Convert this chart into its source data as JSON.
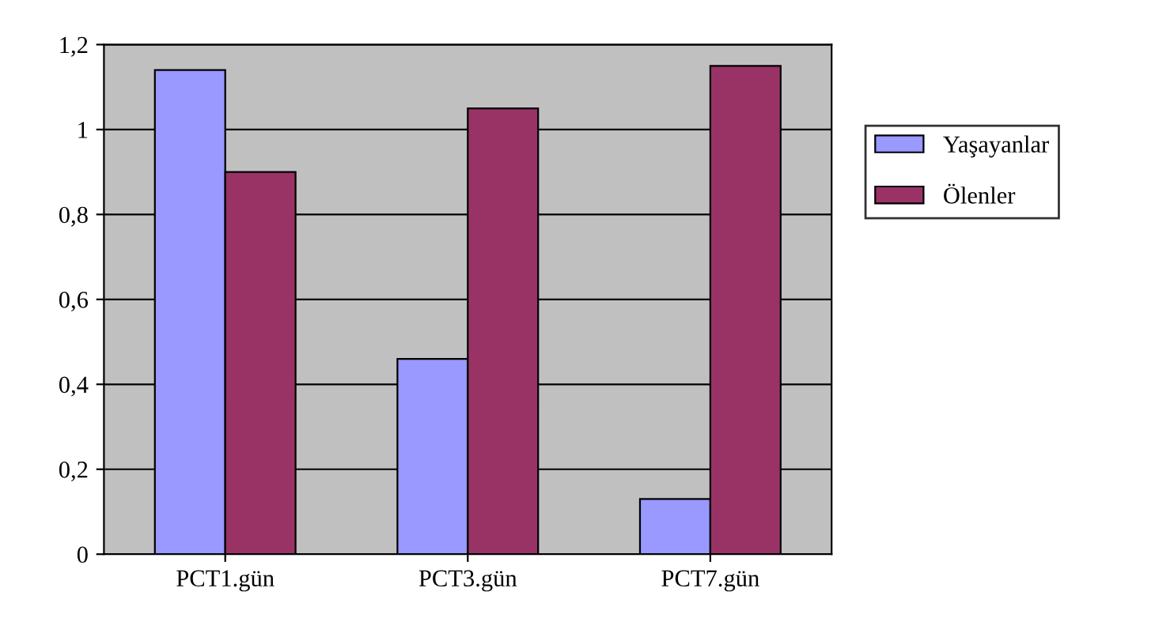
{
  "chart_data": {
    "type": "bar",
    "categories": [
      "PCT1.gün",
      "PCT3.gün",
      "PCT7.gün"
    ],
    "series": [
      {
        "name": "Yaşayanlar",
        "color": "#9999ff",
        "values": [
          1.14,
          0.46,
          0.13
        ]
      },
      {
        "name": "Ölenler",
        "color": "#993366",
        "values": [
          0.9,
          1.05,
          1.15
        ]
      }
    ],
    "ylim": [
      0,
      1.2
    ],
    "yticks": [
      0,
      {
        "value": 0.2,
        "label": "0,2"
      },
      {
        "value": 0.4,
        "label": "0,4"
      },
      {
        "value": 0.6,
        "label": "0,6"
      },
      {
        "value": 0.8,
        "label": "0,8"
      },
      1,
      {
        "value": 1.2,
        "label": "1,2"
      }
    ],
    "grid": "y",
    "legend": "right"
  }
}
